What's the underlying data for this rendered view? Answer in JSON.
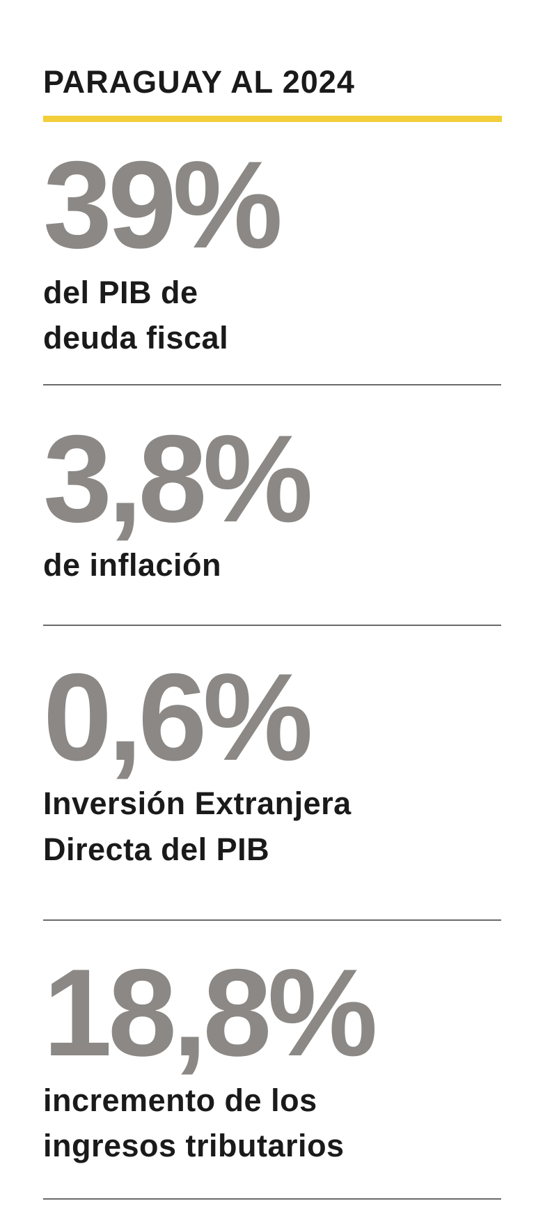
{
  "header": {
    "title": "PARAGUAY AL 2024"
  },
  "items": [
    {
      "value": "39%",
      "lines": [
        "del PIB de",
        "deuda fiscal"
      ]
    },
    {
      "value": "3,8%",
      "lines": [
        "de inflación"
      ]
    },
    {
      "value": "0,6%",
      "lines": [
        "Inversión Extranjera",
        "Directa del PIB"
      ]
    },
    {
      "value": "18,8%",
      "lines": [
        "incremento de los",
        "ingresos tributarios"
      ]
    }
  ]
}
